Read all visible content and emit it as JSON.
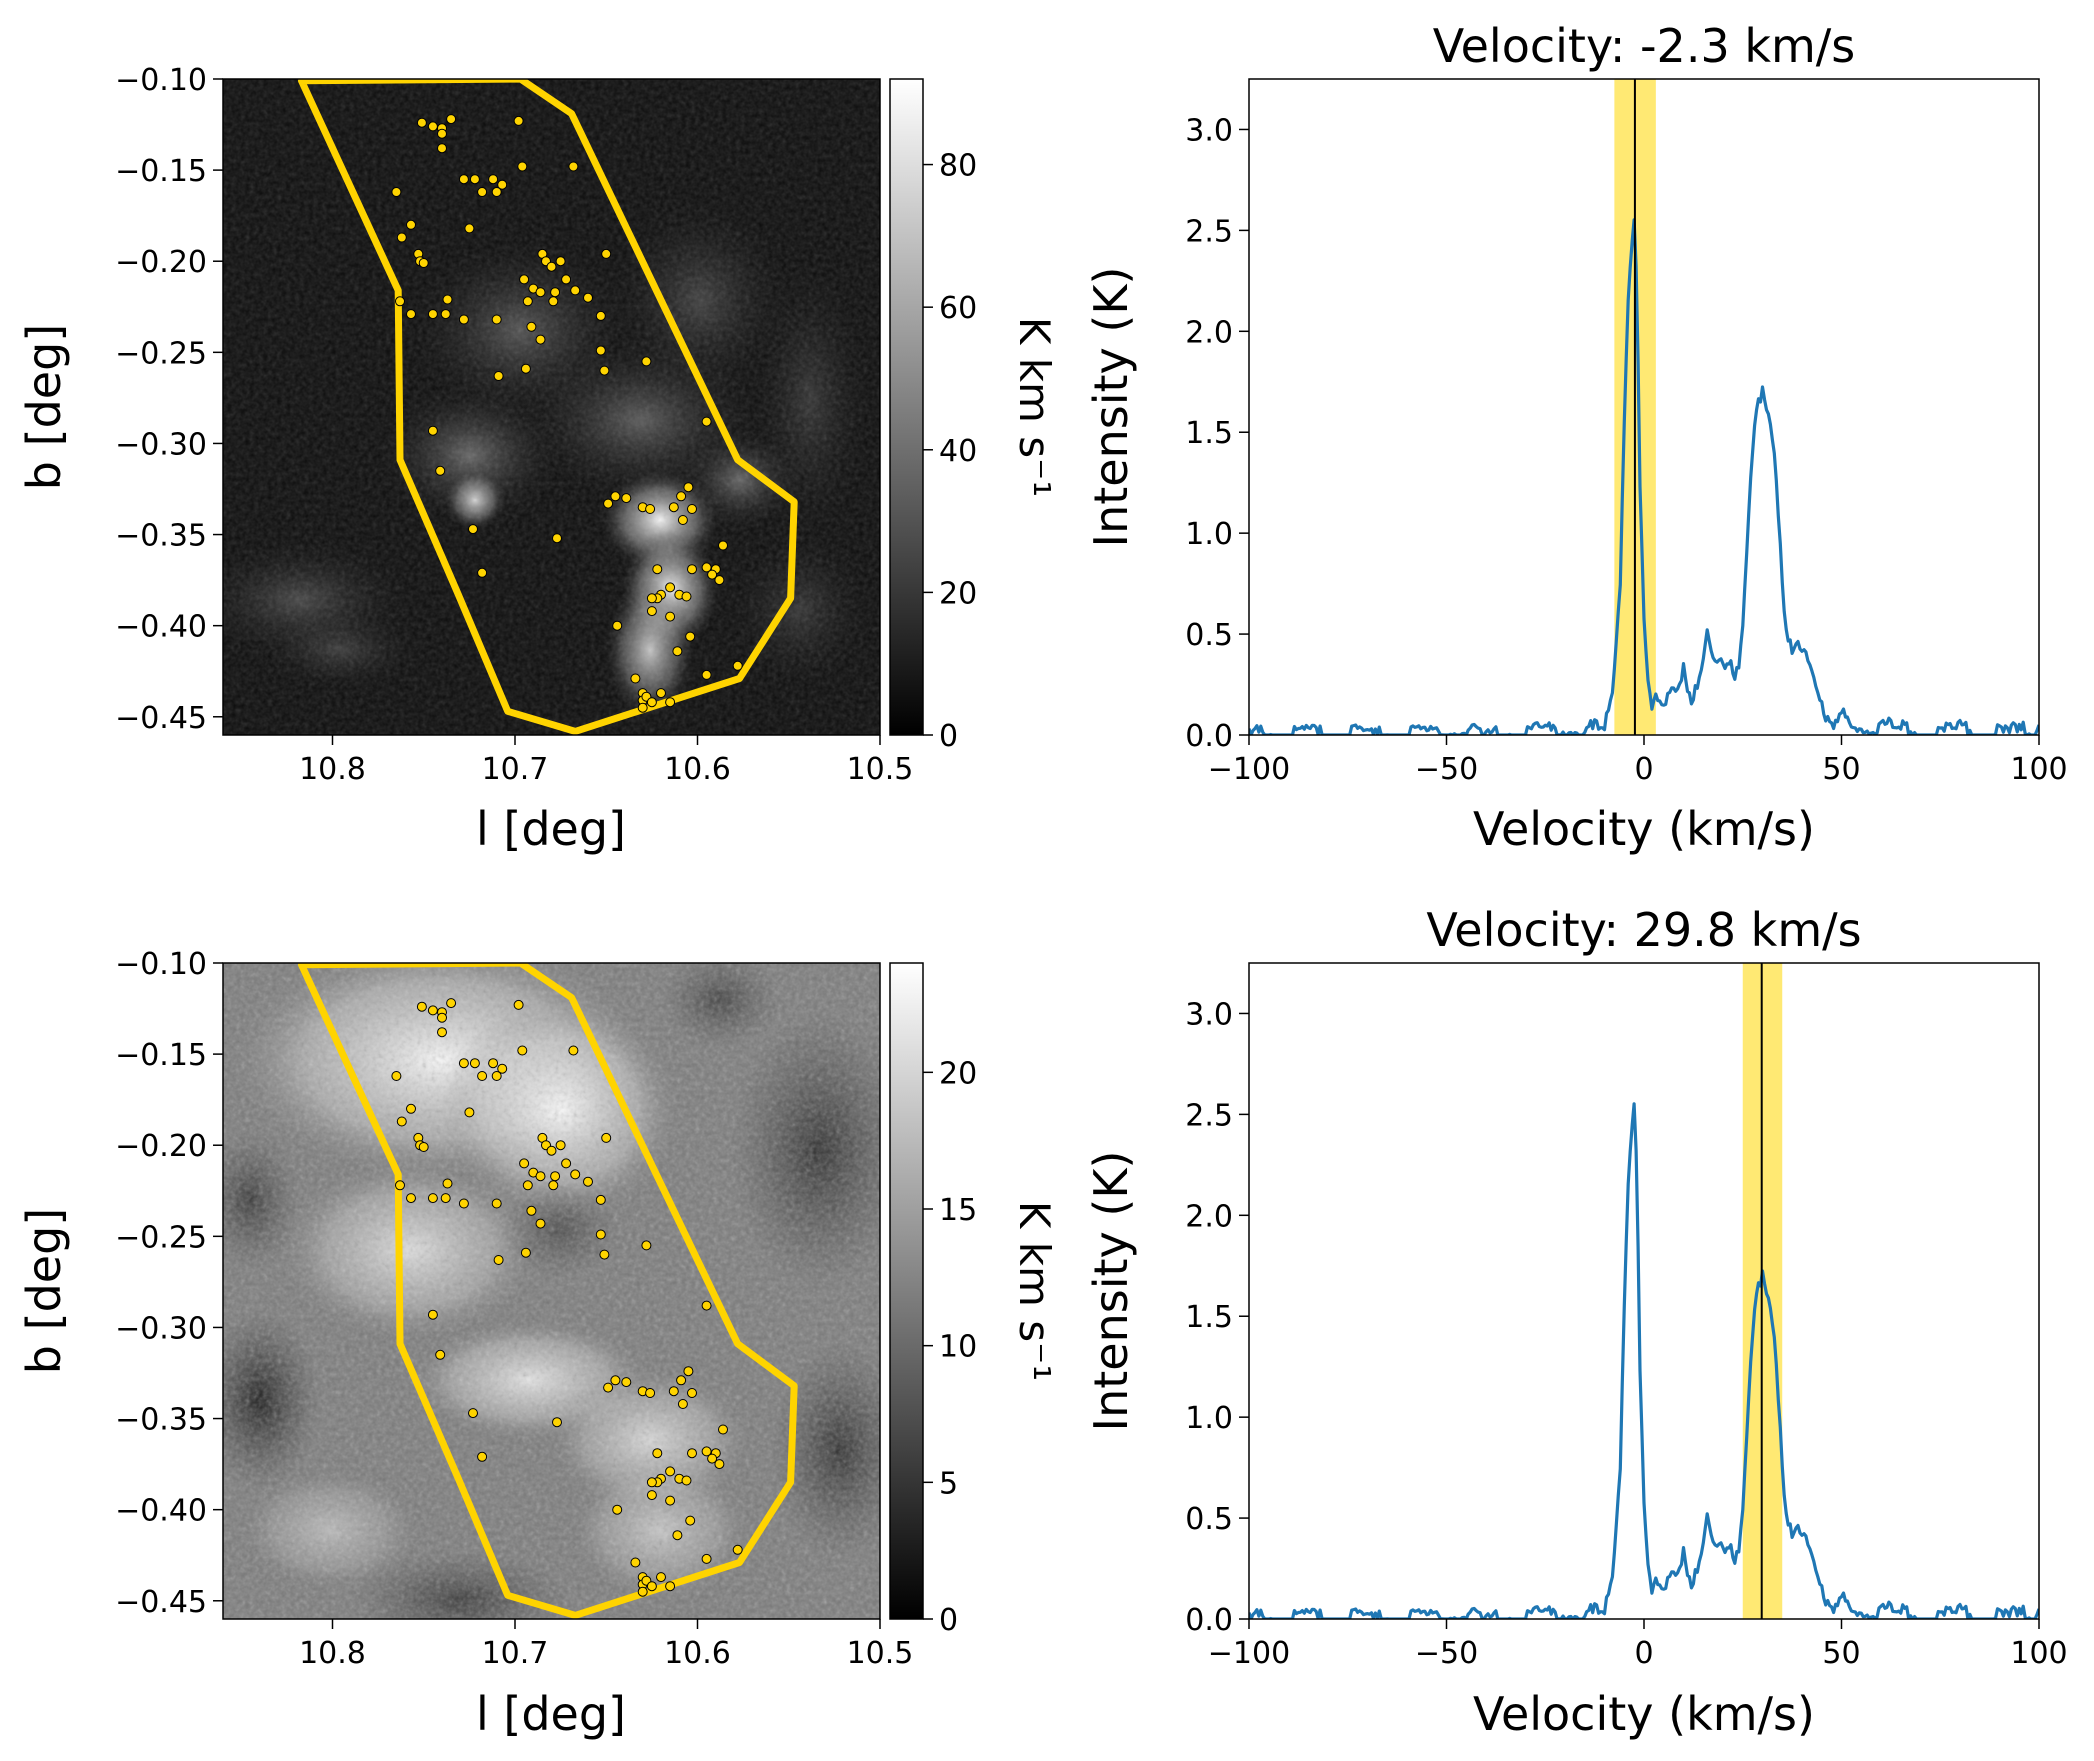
{
  "chart_data": [
    {
      "type": "heatmap",
      "panel": "top-left",
      "xlabel": "l [deg]",
      "ylabel": "b [deg]",
      "xlim": [
        10.86,
        10.5
      ],
      "ylim": [
        -0.46,
        -0.1
      ],
      "xticks": [
        10.8,
        10.7,
        10.6,
        10.5
      ],
      "xtick_labels": [
        "10.8",
        "10.7",
        "10.6",
        "10.5"
      ],
      "yticks": [
        -0.1,
        -0.15,
        -0.2,
        -0.25,
        -0.3,
        -0.35,
        -0.4,
        -0.45
      ],
      "ytick_labels": [
        "−0.10",
        "−0.15",
        "−0.20",
        "−0.25",
        "−0.30",
        "−0.35",
        "−0.40",
        "−0.45"
      ],
      "colormap": "gray",
      "colorbar": {
        "label": "K km s⁻¹",
        "range": [
          0,
          92
        ],
        "ticks": [
          0,
          20,
          40,
          60,
          80
        ],
        "tick_labels": [
          "0",
          "20",
          "40",
          "60",
          "80"
        ]
      },
      "polygon_color": "#FFD400",
      "polygon": [
        [
          10.817,
          -0.101
        ],
        [
          10.697,
          -0.1
        ],
        [
          10.669,
          -0.119
        ],
        [
          10.623,
          -0.215
        ],
        [
          10.578,
          -0.309
        ],
        [
          10.547,
          -0.332
        ],
        [
          10.549,
          -0.385
        ],
        [
          10.577,
          -0.429
        ],
        [
          10.667,
          -0.458
        ],
        [
          10.704,
          -0.447
        ],
        [
          10.731,
          -0.383
        ],
        [
          10.763,
          -0.309
        ],
        [
          10.764,
          -0.216
        ]
      ],
      "points_color": "#FFD400",
      "points": [
        [
          10.751,
          -0.124
        ],
        [
          10.745,
          -0.126
        ],
        [
          10.74,
          -0.127
        ],
        [
          10.74,
          -0.13
        ],
        [
          10.74,
          -0.138
        ],
        [
          10.735,
          -0.122
        ],
        [
          10.698,
          -0.123
        ],
        [
          10.728,
          -0.155
        ],
        [
          10.722,
          -0.155
        ],
        [
          10.712,
          -0.155
        ],
        [
          10.707,
          -0.158
        ],
        [
          10.71,
          -0.162
        ],
        [
          10.718,
          -0.162
        ],
        [
          10.696,
          -0.148
        ],
        [
          10.668,
          -0.148
        ],
        [
          10.765,
          -0.162
        ],
        [
          10.757,
          -0.18
        ],
        [
          10.762,
          -0.187
        ],
        [
          10.753,
          -0.196
        ],
        [
          10.752,
          -0.2
        ],
        [
          10.75,
          -0.201
        ],
        [
          10.725,
          -0.182
        ],
        [
          10.685,
          -0.196
        ],
        [
          10.683,
          -0.2
        ],
        [
          10.68,
          -0.203
        ],
        [
          10.675,
          -0.2
        ],
        [
          10.65,
          -0.196
        ],
        [
          10.695,
          -0.21
        ],
        [
          10.69,
          -0.215
        ],
        [
          10.686,
          -0.217
        ],
        [
          10.678,
          -0.217
        ],
        [
          10.672,
          -0.21
        ],
        [
          10.667,
          -0.216
        ],
        [
          10.66,
          -0.22
        ],
        [
          10.693,
          -0.222
        ],
        [
          10.679,
          -0.222
        ],
        [
          10.763,
          -0.222
        ],
        [
          10.757,
          -0.229
        ],
        [
          10.745,
          -0.229
        ],
        [
          10.738,
          -0.229
        ],
        [
          10.737,
          -0.221
        ],
        [
          10.728,
          -0.232
        ],
        [
          10.71,
          -0.232
        ],
        [
          10.691,
          -0.236
        ],
        [
          10.686,
          -0.243
        ],
        [
          10.653,
          -0.23
        ],
        [
          10.653,
          -0.249
        ],
        [
          10.651,
          -0.26
        ],
        [
          10.628,
          -0.255
        ],
        [
          10.694,
          -0.259
        ],
        [
          10.709,
          -0.263
        ],
        [
          10.745,
          -0.293
        ],
        [
          10.741,
          -0.315
        ],
        [
          10.595,
          -0.288
        ],
        [
          10.723,
          -0.347
        ],
        [
          10.718,
          -0.371
        ],
        [
          10.677,
          -0.352
        ],
        [
          10.649,
          -0.333
        ],
        [
          10.645,
          -0.329
        ],
        [
          10.639,
          -0.33
        ],
        [
          10.63,
          -0.335
        ],
        [
          10.626,
          -0.336
        ],
        [
          10.613,
          -0.335
        ],
        [
          10.609,
          -0.329
        ],
        [
          10.605,
          -0.324
        ],
        [
          10.603,
          -0.336
        ],
        [
          10.608,
          -0.342
        ],
        [
          10.586,
          -0.356
        ],
        [
          10.595,
          -0.368
        ],
        [
          10.59,
          -0.369
        ],
        [
          10.588,
          -0.375
        ],
        [
          10.592,
          -0.372
        ],
        [
          10.622,
          -0.369
        ],
        [
          10.603,
          -0.369
        ],
        [
          10.62,
          -0.383
        ],
        [
          10.622,
          -0.385
        ],
        [
          10.625,
          -0.385
        ],
        [
          10.615,
          -0.379
        ],
        [
          10.61,
          -0.383
        ],
        [
          10.606,
          -0.384
        ],
        [
          10.644,
          -0.4
        ],
        [
          10.625,
          -0.392
        ],
        [
          10.615,
          -0.395
        ],
        [
          10.634,
          -0.429
        ],
        [
          10.611,
          -0.414
        ],
        [
          10.595,
          -0.427
        ],
        [
          10.604,
          -0.406
        ],
        [
          10.578,
          -0.422
        ],
        [
          10.63,
          -0.437
        ],
        [
          10.63,
          -0.441
        ],
        [
          10.628,
          -0.439
        ],
        [
          10.625,
          -0.442
        ],
        [
          10.62,
          -0.437
        ],
        [
          10.615,
          -0.442
        ],
        [
          10.63,
          -0.445
        ]
      ],
      "blobs_note": "bright emission concentrated near l=10.62, b=-0.33 to -0.40"
    },
    {
      "type": "line",
      "panel": "top-right",
      "title": "Velocity: -2.3 km/s",
      "xlabel": "Velocity (km/s)",
      "ylabel": "Intensity (K)",
      "xlim": [
        -100,
        100
      ],
      "ylim": [
        0,
        3.25
      ],
      "xticks": [
        -100,
        -50,
        0,
        50,
        100
      ],
      "xtick_labels": [
        "−100",
        "−50",
        "0",
        "50",
        "100"
      ],
      "yticks": [
        0.0,
        0.5,
        1.0,
        1.5,
        2.0,
        2.5,
        3.0
      ],
      "ytick_labels": [
        "0.0",
        "0.5",
        "1.0",
        "1.5",
        "2.0",
        "2.5",
        "3.0"
      ],
      "line_color": "#1f77b4",
      "marker_velocity": -2.3,
      "band": [
        -7.5,
        3.0
      ],
      "band_color": "#FFD700",
      "series": [
        {
          "x": [
            -100,
            -95,
            -90,
            -85,
            -80,
            -75,
            -70,
            -65,
            -60,
            -55,
            -50,
            -45,
            -40,
            -35,
            -30,
            -25,
            -20,
            -15,
            -10,
            -8,
            -6,
            -5,
            -4,
            -3,
            -2.5,
            -2,
            -1.5,
            -1,
            0,
            1,
            2,
            3,
            5,
            7,
            9,
            10,
            11,
            12,
            14,
            15,
            16,
            17,
            18,
            19,
            20,
            22,
            23,
            24,
            25,
            26,
            27,
            28,
            29,
            30,
            31,
            32,
            33,
            34,
            35,
            36,
            37,
            38,
            39,
            40,
            41,
            42,
            43,
            44,
            45,
            46,
            48,
            50,
            55,
            60,
            65,
            70,
            75,
            80,
            85,
            90,
            95,
            100
          ],
          "y": [
            0.02,
            0.03,
            0.02,
            0.03,
            0.02,
            0.03,
            0.02,
            0.03,
            0.02,
            0.04,
            0.03,
            0.05,
            0.02,
            0.04,
            0.03,
            0.04,
            0.05,
            0.06,
            0.05,
            0.2,
            0.8,
            1.6,
            2.2,
            2.5,
            2.6,
            2.35,
            1.9,
            1.3,
            0.6,
            0.25,
            0.15,
            0.2,
            0.15,
            0.25,
            0.3,
            0.38,
            0.25,
            0.22,
            0.32,
            0.38,
            0.5,
            0.42,
            0.36,
            0.38,
            0.34,
            0.36,
            0.33,
            0.4,
            0.6,
            0.95,
            1.35,
            1.6,
            1.72,
            1.7,
            1.6,
            1.55,
            1.4,
            1.1,
            0.75,
            0.5,
            0.45,
            0.48,
            0.5,
            0.46,
            0.44,
            0.4,
            0.35,
            0.25,
            0.15,
            0.08,
            0.05,
            0.12,
            0.06,
            0.08,
            0.05,
            0.04,
            0.03,
            0.06,
            0.04,
            0.03,
            0.04,
            0.05
          ]
        }
      ]
    },
    {
      "type": "heatmap",
      "panel": "bottom-left",
      "xlabel": "l [deg]",
      "ylabel": "b [deg]",
      "xlim": [
        10.86,
        10.5
      ],
      "ylim": [
        -0.46,
        -0.1
      ],
      "xticks": [
        10.8,
        10.7,
        10.6,
        10.5
      ],
      "xtick_labels": [
        "10.8",
        "10.7",
        "10.6",
        "10.5"
      ],
      "yticks": [
        -0.1,
        -0.15,
        -0.2,
        -0.25,
        -0.3,
        -0.35,
        -0.4,
        -0.45
      ],
      "ytick_labels": [
        "−0.10",
        "−0.15",
        "−0.20",
        "−0.25",
        "−0.30",
        "−0.35",
        "−0.40",
        "−0.45"
      ],
      "colormap": "gray",
      "colorbar": {
        "label": "K km s⁻¹",
        "range": [
          0,
          24
        ],
        "ticks": [
          0,
          5,
          10,
          15,
          20
        ],
        "tick_labels": [
          "0",
          "5",
          "10",
          "15",
          "20"
        ]
      },
      "polygon_color": "#FFD400",
      "points_color": "#FFD400",
      "same_polygon_and_points_as_panel": "top-left"
    },
    {
      "type": "line",
      "panel": "bottom-right",
      "title": "Velocity: 29.8 km/s",
      "xlabel": "Velocity (km/s)",
      "ylabel": "Intensity (K)",
      "xlim": [
        -100,
        100
      ],
      "ylim": [
        0,
        3.25
      ],
      "xticks": [
        -100,
        -50,
        0,
        50,
        100
      ],
      "xtick_labels": [
        "−100",
        "−50",
        "0",
        "50",
        "100"
      ],
      "yticks": [
        0.0,
        0.5,
        1.0,
        1.5,
        2.0,
        2.5,
        3.0
      ],
      "ytick_labels": [
        "0.0",
        "0.5",
        "1.0",
        "1.5",
        "2.0",
        "2.5",
        "3.0"
      ],
      "line_color": "#1f77b4",
      "marker_velocity": 29.8,
      "band": [
        25.0,
        35.0
      ],
      "band_color": "#FFD700",
      "same_series_as_panel": "top-right"
    }
  ]
}
